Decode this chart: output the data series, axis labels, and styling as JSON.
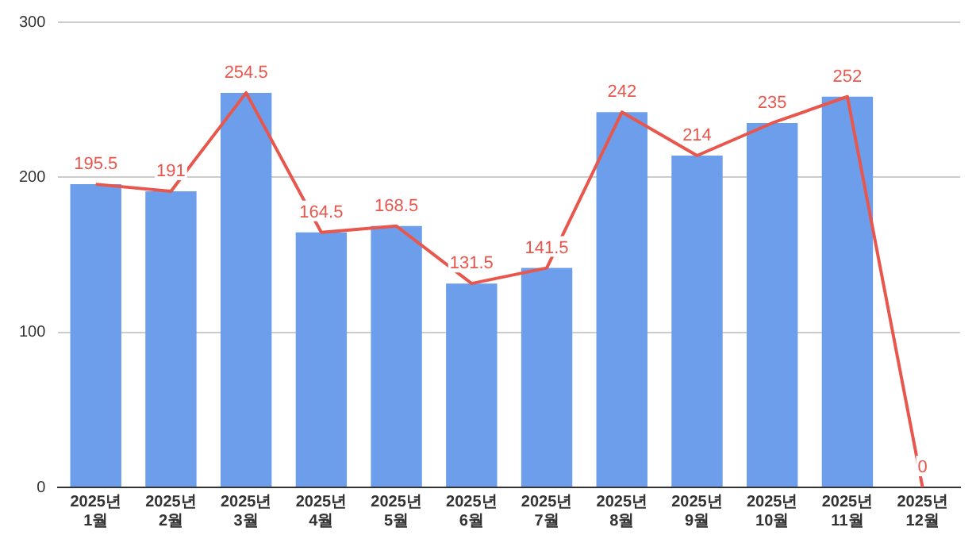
{
  "chart_data": {
    "type": "bar",
    "categories": [
      "2025년 1월",
      "2025년 2월",
      "2025년 3월",
      "2025년 4월",
      "2025년 5월",
      "2025년 6월",
      "2025년 7월",
      "2025년 8월",
      "2025년 9월",
      "2025년 10월",
      "2025년 11월",
      "2025년 12월"
    ],
    "series": [
      {
        "color": "#6d9eeb",
        "values": [
          195.5,
          191,
          254.5,
          164.5,
          168.5,
          131.5,
          141.5,
          242,
          214,
          235,
          252,
          0
        ]
      },
      {
        "type": "line",
        "color": "#e8574e",
        "values": [
          195.5,
          191,
          254.5,
          164.5,
          168.5,
          131.5,
          141.5,
          242,
          214,
          235,
          252,
          0
        ],
        "value_labels": [
          "195.5",
          "191",
          "254.5",
          "164.5",
          "168.5",
          "131.5",
          "141.5",
          "242",
          "214",
          "235",
          "252",
          "0"
        ]
      }
    ],
    "ylim": [
      0,
      300
    ],
    "yticks": [
      0,
      100,
      200,
      300
    ],
    "grid": "y",
    "legend": false,
    "marker": "none"
  }
}
